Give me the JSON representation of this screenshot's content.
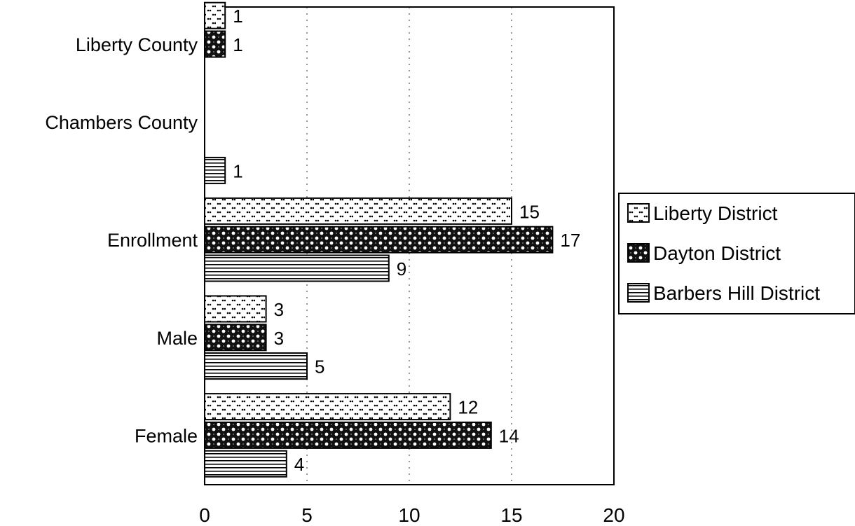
{
  "chart_data": {
    "type": "bar",
    "orientation": "horizontal",
    "categories": [
      "Liberty County",
      "Chambers County",
      "Enrollment",
      "Male",
      "Female"
    ],
    "series": [
      {
        "name": "Liberty District",
        "values": [
          1,
          null,
          15,
          3,
          12
        ],
        "pattern": "dots"
      },
      {
        "name": "Dayton District",
        "values": [
          1,
          null,
          17,
          3,
          14
        ],
        "pattern": "dark-speckle"
      },
      {
        "name": "Barbers Hill District",
        "values": [
          null,
          1,
          9,
          5,
          4
        ],
        "pattern": "horizontal-lines"
      }
    ],
    "xlim": [
      0,
      20
    ],
    "xticks": [
      0,
      5,
      10,
      15,
      20
    ],
    "title": "",
    "xlabel": "",
    "ylabel": "",
    "grid": "x",
    "legend": "right"
  }
}
